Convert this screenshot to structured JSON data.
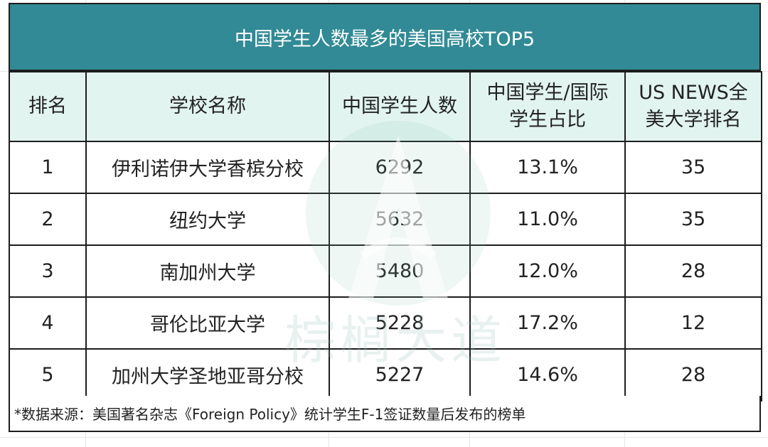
{
  "title": "中国学生人数最多的美国高校TOP5",
  "headers": [
    "排名",
    "学校名称",
    "中国学生人数",
    "中国学生/国际学生占比",
    "US NEWS全美大学排名"
  ],
  "header_lines": [
    [
      "排名"
    ],
    [
      "学校名称"
    ],
    [
      "中国学生人数"
    ],
    [
      "中国学生/国际",
      "学生占比"
    ],
    [
      "US NEWS全",
      "美大学排名"
    ]
  ],
  "rows": [
    [
      "1",
      "伊利诺伊大学香槟分校",
      "6292",
      "13.1%",
      "35"
    ],
    [
      "2",
      "纽约大学",
      "5632",
      "11.0%",
      "35"
    ],
    [
      "3",
      "南加州大学",
      "5480",
      "12.0%",
      "28"
    ],
    [
      "4",
      "哥伦比亚大学",
      "5228",
      "17.2%",
      "12"
    ],
    [
      "5",
      "加州大学圣地亚哥分校",
      "5227",
      "14.6%",
      "28"
    ]
  ],
  "footnote": "*数据来源：美国著名杂志《Foreign Policy》统计学生F-1签证数量后发布的榜单",
  "watermark_text": "棕榈大道",
  "colors": {
    "title_bg": "#318a95",
    "header_bg": "#e2f4f0",
    "border": "#1d1d1d"
  }
}
